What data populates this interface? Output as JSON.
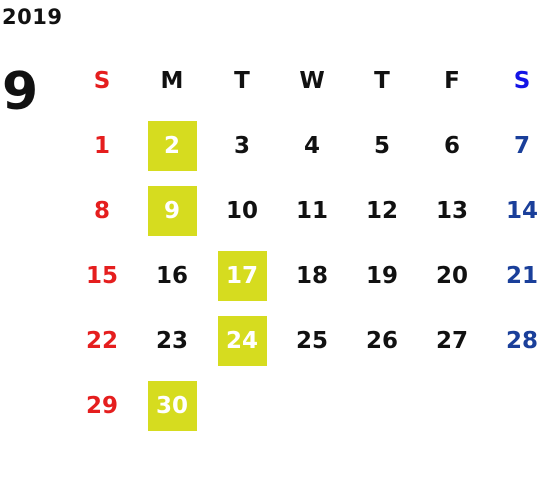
{
  "year": "2019",
  "month": "9",
  "weekdays": [
    "S",
    "M",
    "T",
    "W",
    "T",
    "F",
    "S"
  ],
  "weeks": [
    [
      "",
      "",
      "",
      "",
      "",
      "",
      ""
    ],
    [
      "1",
      "2",
      "3",
      "4",
      "5",
      "6",
      "7"
    ],
    [
      "8",
      "9",
      "10",
      "11",
      "12",
      "13",
      "14"
    ],
    [
      "15",
      "16",
      "17",
      "18",
      "19",
      "20",
      "21"
    ],
    [
      "22",
      "23",
      "24",
      "25",
      "26",
      "27",
      "28"
    ],
    [
      "29",
      "30",
      "",
      "",
      "",
      "",
      ""
    ]
  ],
  "highlighted": [
    "2",
    "9",
    "17",
    "24",
    "30"
  ],
  "colors": {
    "sunday": "#e51e1e",
    "saturday": "#1a3f9a",
    "saturday_header": "#1414e6",
    "highlight": "#d6dc1f",
    "text": "#111111"
  }
}
